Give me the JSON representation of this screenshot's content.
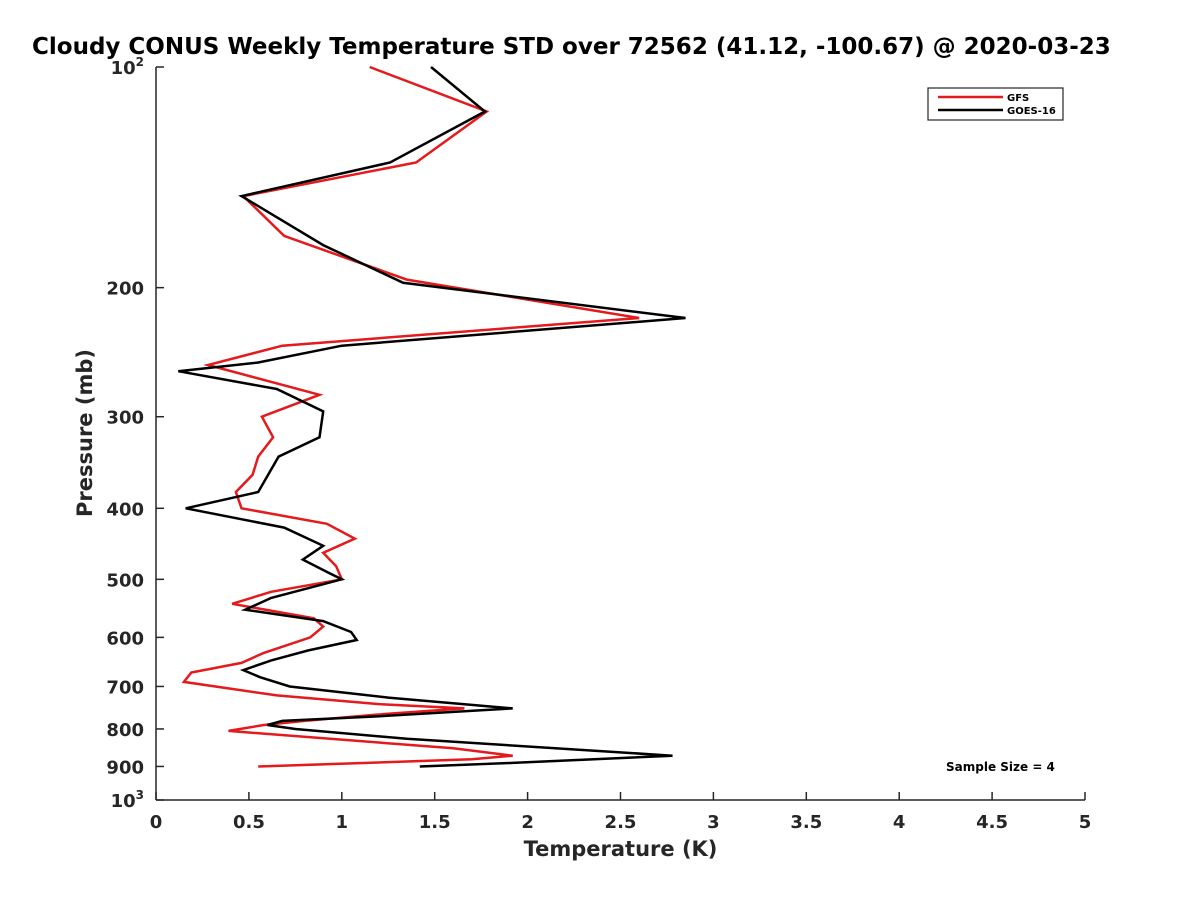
{
  "chart_data": {
    "type": "line",
    "title": "Cloudy CONUS Weekly Temperature STD over 72562 (41.12, -100.67) @ 2020-03-23",
    "xlabel": "Temperature (K)",
    "ylabel": "Pressure (mb)",
    "xlim": [
      0,
      5
    ],
    "ylim": [
      100,
      1000
    ],
    "y_scale": "log",
    "y_reversed": true,
    "grid": false,
    "legend_position": "top-right",
    "x_ticks": [
      "0",
      "0.5",
      "1",
      "1.5",
      "2",
      "2.5",
      "3",
      "3.5",
      "4",
      "4.5",
      "5"
    ],
    "y_ticks": [
      {
        "value": 100,
        "base": "10",
        "exp": "2"
      },
      {
        "value": 200,
        "label": "200"
      },
      {
        "value": 300,
        "label": "300"
      },
      {
        "value": 400,
        "label": "400"
      },
      {
        "value": 500,
        "label": "500"
      },
      {
        "value": 600,
        "label": "600"
      },
      {
        "value": 700,
        "label": "700"
      },
      {
        "value": 800,
        "label": "800"
      },
      {
        "value": 900,
        "label": "900"
      },
      {
        "value": 1000,
        "base": "10",
        "exp": "3"
      }
    ],
    "annotation": "Sample Size = 4",
    "series": [
      {
        "name": "GFS",
        "color": "#e41a1c",
        "points": [
          [
            1.15,
            100
          ],
          [
            1.78,
            115
          ],
          [
            1.4,
            135
          ],
          [
            0.47,
            150
          ],
          [
            0.69,
            170
          ],
          [
            1.35,
            195
          ],
          [
            2.6,
            220
          ],
          [
            0.68,
            240
          ],
          [
            0.28,
            255
          ],
          [
            0.88,
            280
          ],
          [
            0.57,
            300
          ],
          [
            0.63,
            320
          ],
          [
            0.55,
            340
          ],
          [
            0.52,
            360
          ],
          [
            0.43,
            380
          ],
          [
            0.46,
            400
          ],
          [
            0.92,
            420
          ],
          [
            1.07,
            440
          ],
          [
            0.9,
            460
          ],
          [
            0.97,
            480
          ],
          [
            1.0,
            500
          ],
          [
            0.62,
            520
          ],
          [
            0.41,
            540
          ],
          [
            0.85,
            565
          ],
          [
            0.9,
            580
          ],
          [
            0.83,
            600
          ],
          [
            0.58,
            630
          ],
          [
            0.46,
            650
          ],
          [
            0.19,
            670
          ],
          [
            0.15,
            690
          ],
          [
            0.65,
            720
          ],
          [
            1.2,
            740
          ],
          [
            1.66,
            750
          ],
          [
            1.18,
            765
          ],
          [
            0.8,
            780
          ],
          [
            0.58,
            790
          ],
          [
            0.39,
            805
          ],
          [
            1.6,
            850
          ],
          [
            1.92,
            870
          ],
          [
            1.7,
            880
          ],
          [
            0.55,
            900
          ]
        ]
      },
      {
        "name": "GOES-16",
        "color": "#000000",
        "points": [
          [
            1.48,
            100
          ],
          [
            1.77,
            115
          ],
          [
            1.26,
            135
          ],
          [
            0.46,
            150
          ],
          [
            0.9,
            175
          ],
          [
            1.33,
            197
          ],
          [
            2.85,
            220
          ],
          [
            1.0,
            240
          ],
          [
            0.55,
            253
          ],
          [
            0.12,
            260
          ],
          [
            0.65,
            275
          ],
          [
            0.9,
            295
          ],
          [
            0.88,
            320
          ],
          [
            0.66,
            340
          ],
          [
            0.55,
            380
          ],
          [
            0.16,
            400
          ],
          [
            0.69,
            425
          ],
          [
            0.9,
            450
          ],
          [
            0.79,
            470
          ],
          [
            0.93,
            490
          ],
          [
            1.0,
            500
          ],
          [
            0.62,
            530
          ],
          [
            0.48,
            550
          ],
          [
            0.9,
            570
          ],
          [
            1.05,
            590
          ],
          [
            1.08,
            605
          ],
          [
            0.82,
            625
          ],
          [
            0.62,
            645
          ],
          [
            0.47,
            665
          ],
          [
            0.56,
            680
          ],
          [
            0.72,
            700
          ],
          [
            1.25,
            725
          ],
          [
            1.92,
            750
          ],
          [
            1.15,
            770
          ],
          [
            0.68,
            780
          ],
          [
            0.6,
            790
          ],
          [
            0.75,
            800
          ],
          [
            1.35,
            825
          ],
          [
            2.78,
            870
          ],
          [
            1.92,
            890
          ],
          [
            1.42,
            900
          ]
        ]
      }
    ]
  }
}
